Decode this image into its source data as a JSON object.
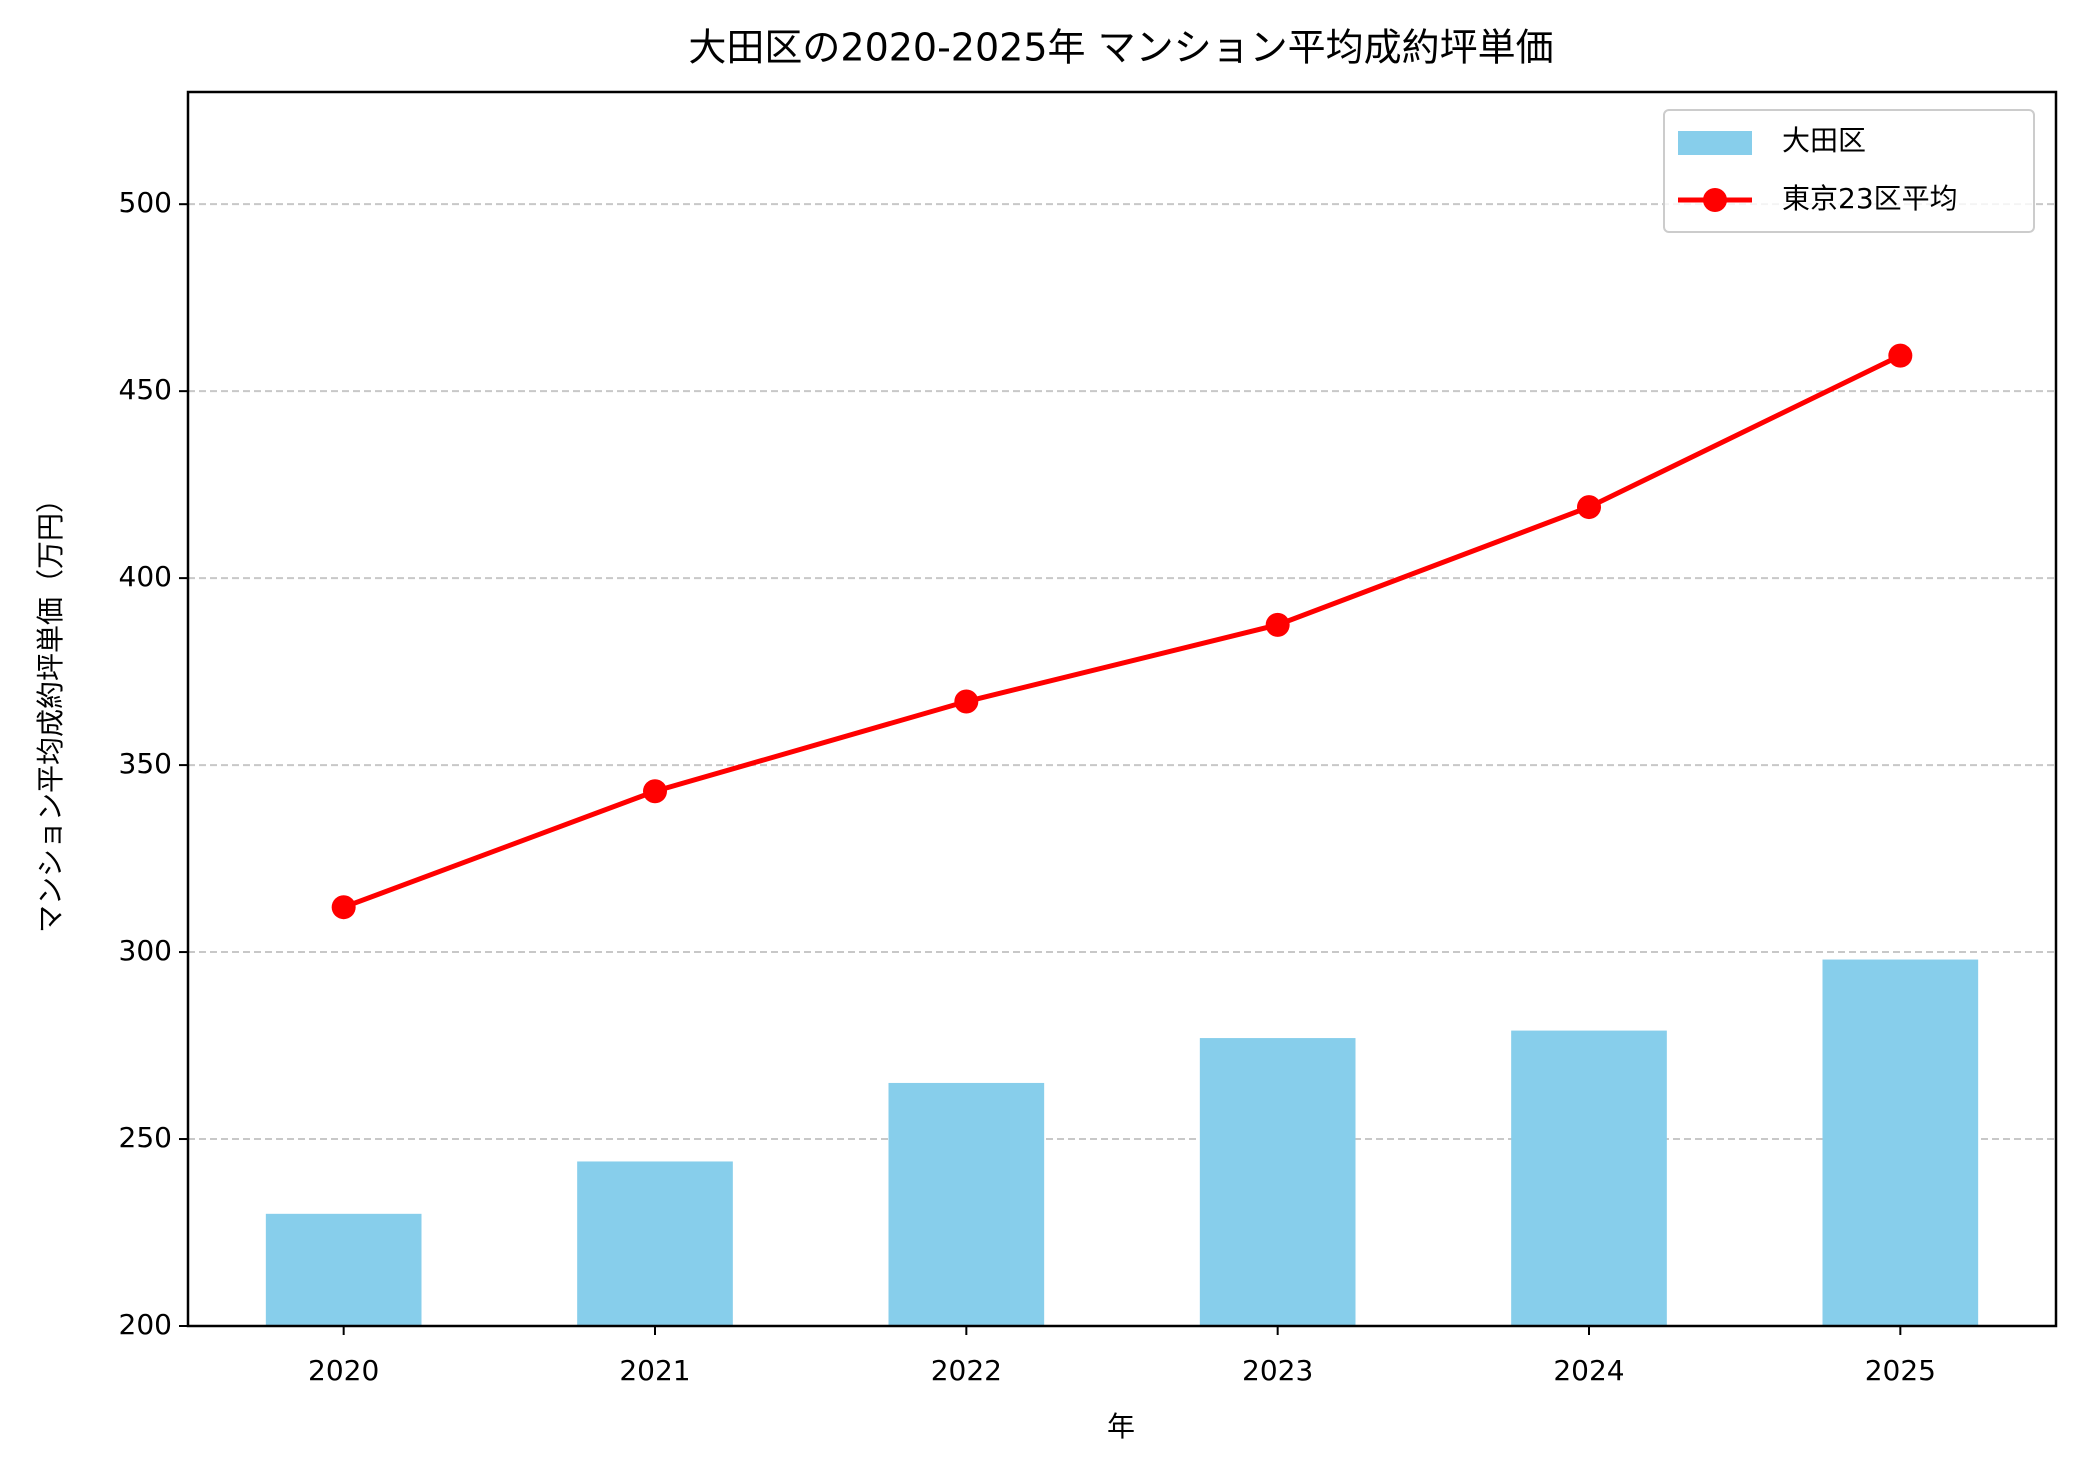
{
  "chart_data": {
    "type": "bar+line",
    "title": "大田区の2020-2025年 マンション平均成約坪単価",
    "x_label": "年",
    "y_label": "マンション平均成約坪単価（万円）",
    "categories": [
      "2020",
      "2021",
      "2022",
      "2023",
      "2024",
      "2025"
    ],
    "series": [
      {
        "name": "大田区",
        "type": "bar",
        "color": "#87ceeb",
        "values": [
          230,
          244,
          265,
          277,
          279,
          298
        ]
      },
      {
        "name": "東京23区平均",
        "type": "line",
        "color": "#ff0000",
        "values": [
          312,
          343,
          367,
          387.5,
          419,
          459.5
        ]
      }
    ],
    "ylim": [
      200,
      530
    ],
    "yticks": [
      200,
      250,
      300,
      350,
      400,
      450,
      500
    ],
    "grid": true,
    "legend": "upper right"
  }
}
